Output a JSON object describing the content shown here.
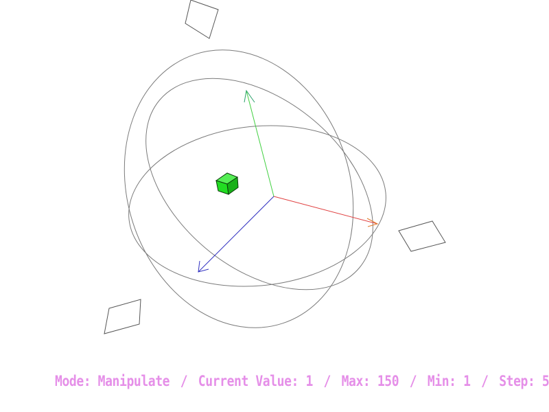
{
  "colors": {
    "background": "#ffffff",
    "gizmo_ring": "#7a7a7a",
    "axis_x": "#e04040",
    "axis_y": "#40d040",
    "axis_z": "#3030c0",
    "cube_front": "#22dd22",
    "cube_top": "#55ee55",
    "cube_side": "#18b018",
    "panel_outline": "#555555",
    "status_text": "#e58fe8"
  },
  "icons": {
    "cube": "cube-icon",
    "axis_x_arrow": "arrow-right-icon",
    "axis_y_arrow": "arrow-up-icon",
    "axis_z_arrow": "arrow-down-left-icon"
  },
  "status": {
    "mode_label": "Mode:",
    "mode_value": "Manipulate",
    "current_label": "Current Value:",
    "current_value": "1",
    "max_label": "Max:",
    "max_value": "150",
    "min_label": "Min:",
    "min_value": "1",
    "step_label": "Step:",
    "step_value": "5",
    "separator": "/"
  }
}
